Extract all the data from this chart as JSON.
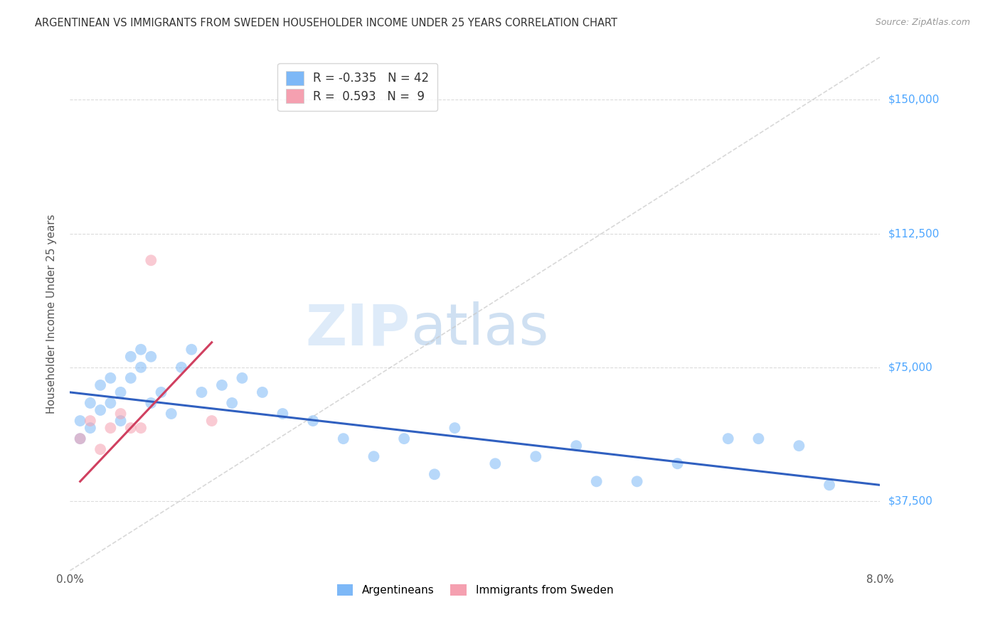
{
  "title": "ARGENTINEAN VS IMMIGRANTS FROM SWEDEN HOUSEHOLDER INCOME UNDER 25 YEARS CORRELATION CHART",
  "source": "Source: ZipAtlas.com",
  "ylabel_label": "Householder Income Under 25 years",
  "ylabel_ticks": [
    "$37,500",
    "$75,000",
    "$112,500",
    "$150,000"
  ],
  "ylabel_values": [
    37500,
    75000,
    112500,
    150000
  ],
  "xmin": 0.0,
  "xmax": 0.08,
  "ymin": 18000,
  "ymax": 162000,
  "legend_blue_r": "-0.335",
  "legend_blue_n": "42",
  "legend_pink_r": "0.593",
  "legend_pink_n": "9",
  "blue_scatter_x": [
    0.001,
    0.001,
    0.002,
    0.002,
    0.003,
    0.003,
    0.004,
    0.004,
    0.005,
    0.005,
    0.006,
    0.006,
    0.007,
    0.007,
    0.008,
    0.008,
    0.009,
    0.01,
    0.011,
    0.012,
    0.013,
    0.015,
    0.016,
    0.017,
    0.019,
    0.021,
    0.024,
    0.027,
    0.03,
    0.033,
    0.036,
    0.038,
    0.042,
    0.046,
    0.05,
    0.052,
    0.056,
    0.06,
    0.065,
    0.068,
    0.072,
    0.075
  ],
  "blue_scatter_y": [
    60000,
    55000,
    65000,
    58000,
    70000,
    63000,
    72000,
    65000,
    68000,
    60000,
    78000,
    72000,
    80000,
    75000,
    78000,
    65000,
    68000,
    62000,
    75000,
    80000,
    68000,
    70000,
    65000,
    72000,
    68000,
    62000,
    60000,
    55000,
    50000,
    55000,
    45000,
    58000,
    48000,
    50000,
    53000,
    43000,
    43000,
    48000,
    55000,
    55000,
    53000,
    42000
  ],
  "pink_scatter_x": [
    0.001,
    0.002,
    0.003,
    0.004,
    0.005,
    0.006,
    0.007,
    0.008,
    0.014
  ],
  "pink_scatter_y": [
    55000,
    60000,
    52000,
    58000,
    62000,
    58000,
    58000,
    105000,
    60000
  ],
  "blue_line_x": [
    0.0,
    0.08
  ],
  "blue_line_y": [
    68000,
    42000
  ],
  "pink_line_x": [
    0.001,
    0.014
  ],
  "pink_line_y": [
    43000,
    82000
  ],
  "diag_line_x": [
    0.0,
    0.08
  ],
  "diag_line_y": [
    18000,
    162000
  ],
  "watermark_zip": "ZIP",
  "watermark_atlas": "atlas",
  "scatter_alpha": 0.55,
  "scatter_size": 130,
  "blue_color": "#7db8f7",
  "pink_color": "#f5a0b0",
  "blue_line_color": "#3060c0",
  "pink_line_color": "#d04060",
  "diagonal_color": "#c8c8c8",
  "grid_color": "#d8d8d8",
  "title_color": "#333333",
  "source_color": "#999999",
  "ylabel_right_color": "#4da6ff"
}
